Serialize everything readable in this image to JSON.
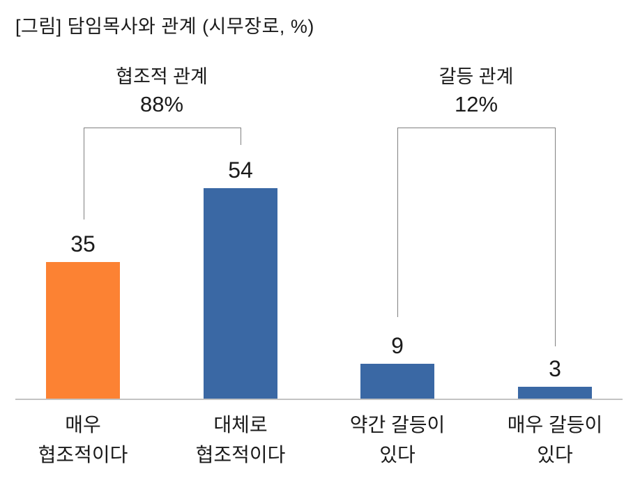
{
  "title": "[그림] 담임목사와 관계 (시무장로, %)",
  "groups": [
    {
      "label": "협조적 관계",
      "percent": "88%"
    },
    {
      "label": "갈등 관계",
      "percent": "12%"
    }
  ],
  "colors": {
    "bar_orange": "#FC8233",
    "bar_blue": "#3A68A4",
    "axis_line": "#C3C3C3",
    "bracket_line": "#808080",
    "text": "#1A1A1A",
    "background": "#FFFFFF"
  },
  "chart_data": {
    "type": "bar",
    "title": "[그림] 담임목사와 관계 (시무장로, %)",
    "unit": "%",
    "categories": [
      "매우\n협조적이다",
      "대체로\n협조적이다",
      "약간 갈등이\n있다",
      "매우 갈등이\n있다"
    ],
    "values": [
      35,
      54,
      9,
      3
    ],
    "bar_colors": [
      "#FC8233",
      "#3A68A4",
      "#3A68A4",
      "#3A68A4"
    ],
    "ylim": [
      0,
      60
    ],
    "grid": false,
    "legend": "none",
    "groups": [
      {
        "label": "협조적 관계",
        "percent": 88,
        "bars": [
          "매우 협조적이다",
          "대체로 협조적이다"
        ]
      },
      {
        "label": "갈등 관계",
        "percent": 12,
        "bars": [
          "약간 갈등이 있다",
          "매우 갈등이 있다"
        ]
      }
    ]
  }
}
